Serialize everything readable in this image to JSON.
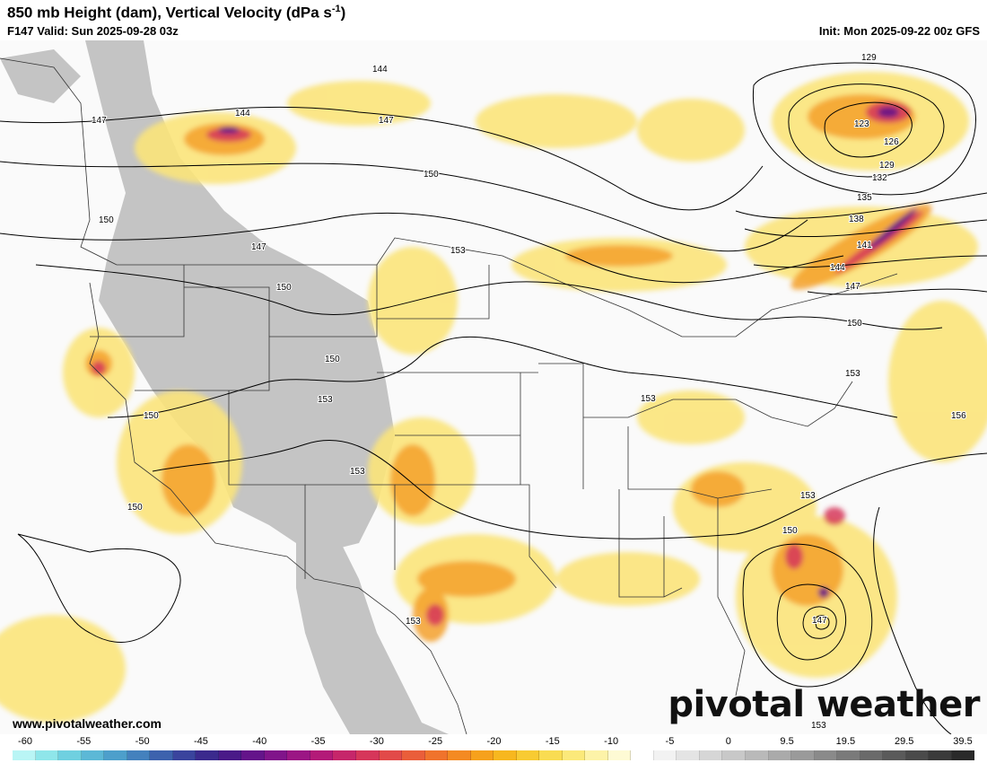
{
  "header": {
    "title_main": "850 mb Height (dam), Vertical Velocity (dPa s",
    "title_sup": "-1",
    "title_close": ")",
    "valid": "F147 Valid: Sun 2025-09-28 03z",
    "init": "Init: Mon 2025-09-22 00z GFS"
  },
  "map": {
    "contour_labels": [
      "144",
      "147",
      "144",
      "147",
      "150",
      "123",
      "126",
      "129",
      "129",
      "132",
      "135",
      "138",
      "141",
      "144",
      "147",
      "150",
      "153",
      "150",
      "147",
      "150",
      "150",
      "153",
      "153",
      "150",
      "153",
      "153",
      "156",
      "153",
      "150",
      "147",
      "153",
      "153"
    ],
    "watermark": "pivotal weather",
    "website": "www.pivotalweather.com"
  },
  "colorbar": {
    "labels": [
      "-60",
      "-55",
      "-50",
      "-45",
      "-40",
      "-35",
      "-30",
      "-25",
      "-20",
      "-15",
      "-10",
      "-5",
      "0",
      "9.5",
      "19.5",
      "29.5",
      "39.5"
    ],
    "colors": [
      "#b9f5f5",
      "#8fe6ea",
      "#6fd0e0",
      "#5cb8d6",
      "#4d9fcb",
      "#4481bd",
      "#3d62ad",
      "#3a449d",
      "#3b2a8d",
      "#4a1a88",
      "#64148a",
      "#80148a",
      "#9b1684",
      "#b31a78",
      "#c6266a",
      "#d6365a",
      "#e24a49",
      "#ea5e3a",
      "#f0732c",
      "#f48a22",
      "#f6a11c",
      "#f7b71f",
      "#f8cb32",
      "#f9dc52",
      "#fbe97a",
      "#fdf3a8",
      "#fefad4",
      "#ffffff",
      "#f2f2f2",
      "#e4e4e4",
      "#d6d6d6",
      "#c8c8c8",
      "#b9b9b9",
      "#aaaaaa",
      "#9a9a9a",
      "#8a8a8a",
      "#7a7a7a",
      "#6a6a6a",
      "#5a5a5a",
      "#4a4a4a",
      "#3a3a3a",
      "#2a2a2a"
    ]
  }
}
